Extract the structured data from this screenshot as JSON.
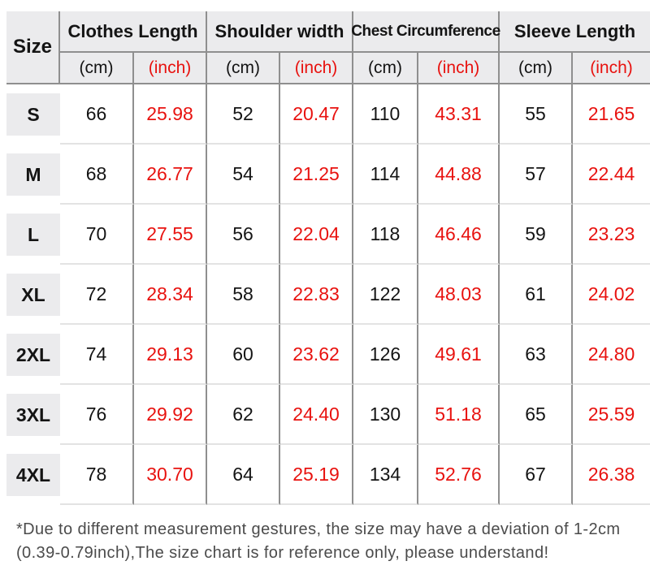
{
  "table": {
    "size_header": "Size",
    "groups": [
      {
        "label": "Clothes Length"
      },
      {
        "label": "Shoulder width"
      },
      {
        "label": "Chest Circumference"
      },
      {
        "label": "Sleeve Length"
      }
    ],
    "unit_cm": "(cm)",
    "unit_inch": "(inch)",
    "rows": [
      {
        "size": "S",
        "clothes_cm": "66",
        "clothes_inch": "25.98",
        "shoulder_cm": "52",
        "shoulder_inch": "20.47",
        "chest_cm": "110",
        "chest_inch": "43.31",
        "sleeve_cm": "55",
        "sleeve_inch": "21.65"
      },
      {
        "size": "M",
        "clothes_cm": "68",
        "clothes_inch": "26.77",
        "shoulder_cm": "54",
        "shoulder_inch": "21.25",
        "chest_cm": "114",
        "chest_inch": "44.88",
        "sleeve_cm": "57",
        "sleeve_inch": "22.44"
      },
      {
        "size": "L",
        "clothes_cm": "70",
        "clothes_inch": "27.55",
        "shoulder_cm": "56",
        "shoulder_inch": "22.04",
        "chest_cm": "118",
        "chest_inch": "46.46",
        "sleeve_cm": "59",
        "sleeve_inch": "23.23"
      },
      {
        "size": "XL",
        "clothes_cm": "72",
        "clothes_inch": "28.34",
        "shoulder_cm": "58",
        "shoulder_inch": "22.83",
        "chest_cm": "122",
        "chest_inch": "48.03",
        "sleeve_cm": "61",
        "sleeve_inch": "24.02"
      },
      {
        "size": "2XL",
        "clothes_cm": "74",
        "clothes_inch": "29.13",
        "shoulder_cm": "60",
        "shoulder_inch": "23.62",
        "chest_cm": "126",
        "chest_inch": "49.61",
        "sleeve_cm": "63",
        "sleeve_inch": "24.80"
      },
      {
        "size": "3XL",
        "clothes_cm": "76",
        "clothes_inch": "29.92",
        "shoulder_cm": "62",
        "shoulder_inch": "24.40",
        "chest_cm": "130",
        "chest_inch": "51.18",
        "sleeve_cm": "65",
        "sleeve_inch": "25.59"
      },
      {
        "size": "4XL",
        "clothes_cm": "78",
        "clothes_inch": "30.70",
        "shoulder_cm": "64",
        "shoulder_inch": "25.19",
        "chest_cm": "134",
        "chest_inch": "52.76",
        "sleeve_cm": "67",
        "sleeve_inch": "26.38"
      }
    ]
  },
  "footer": {
    "line1": "*Due to different measurement gestures, the size may have a deviation of 1-2cm",
    "line2": "(0.39-0.79inch),The size chart is for reference only, please understand!"
  },
  "colors": {
    "accent_red": "#e8120f",
    "header_bg": "#ebebed",
    "dark_line": "#8f8f8f",
    "light_line": "#e3e3e3",
    "text": "#141414",
    "footer_text": "#4b4b4b"
  },
  "chart_data": {
    "type": "table",
    "title": "Apparel size chart",
    "columns": [
      "Size",
      "Clothes Length (cm)",
      "Clothes Length (inch)",
      "Shoulder width (cm)",
      "Shoulder width (inch)",
      "Chest Circumference (cm)",
      "Chest Circumference (inch)",
      "Sleeve Length (cm)",
      "Sleeve Length (inch)"
    ],
    "rows": [
      [
        "S",
        66,
        25.98,
        52,
        20.47,
        110,
        43.31,
        55,
        21.65
      ],
      [
        "M",
        68,
        26.77,
        54,
        21.25,
        114,
        44.88,
        57,
        22.44
      ],
      [
        "L",
        70,
        27.55,
        56,
        22.04,
        118,
        46.46,
        59,
        23.23
      ],
      [
        "XL",
        72,
        28.34,
        58,
        22.83,
        122,
        48.03,
        61,
        24.02
      ],
      [
        "2XL",
        74,
        29.13,
        60,
        23.62,
        126,
        49.61,
        63,
        24.8
      ],
      [
        "3XL",
        76,
        29.92,
        62,
        24.4,
        130,
        51.18,
        65,
        25.59
      ],
      [
        "4XL",
        78,
        30.7,
        64,
        25.19,
        134,
        52.76,
        67,
        26.38
      ]
    ],
    "footnote": "*Due to different measurement gestures, the size may have a deviation of 1-2cm (0.39-0.79inch),The size chart is for reference only, please understand!"
  }
}
